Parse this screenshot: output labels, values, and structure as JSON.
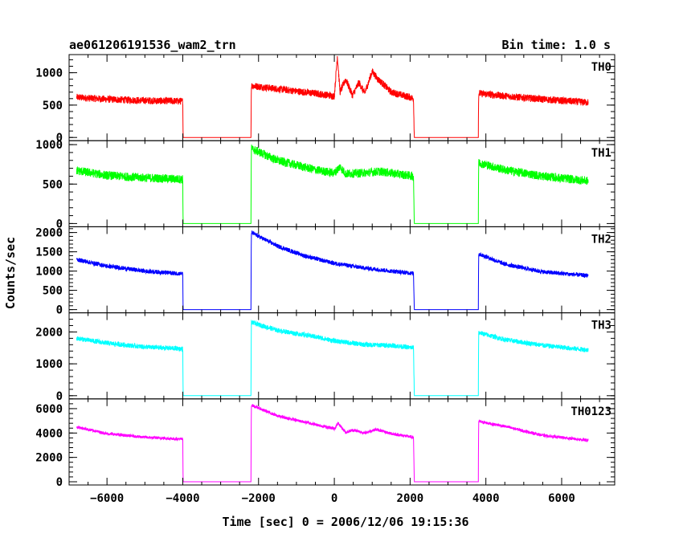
{
  "header": {
    "title": "ae061206191536_wam2_trn",
    "bin_time": "Bin time: 1.0 s"
  },
  "chart_data": {
    "type": "line",
    "xlabel": "Time [sec] 0 = 2006/12/06 19:15:36",
    "ylabel": "Counts/sec",
    "xlim": [
      -7000,
      7400
    ],
    "xticks": [
      -6000,
      -4000,
      -2000,
      0,
      2000,
      4000,
      6000
    ],
    "xtick_labels": [
      "−6000",
      "−4000",
      "−2000",
      "0",
      "2000",
      "4000",
      "6000"
    ],
    "series": [
      {
        "name": "TH0",
        "color": "#ff0000",
        "ylim": [
          0,
          1280
        ],
        "yticks": [
          0,
          500,
          1000
        ],
        "x": [
          -6800,
          -6000,
          -5000,
          -4000,
          -3990,
          -2200,
          -2190,
          -1500,
          -500,
          0,
          80,
          150,
          300,
          480,
          650,
          800,
          1000,
          1150,
          1300,
          1500,
          2000,
          2090,
          2110,
          3800,
          3810,
          4500,
          5500,
          6700
        ],
        "y": [
          620,
          590,
          570,
          560,
          0,
          0,
          800,
          750,
          680,
          640,
          1260,
          700,
          900,
          650,
          850,
          680,
          1020,
          900,
          820,
          700,
          620,
          600,
          0,
          0,
          680,
          640,
          590,
          540
        ],
        "noise": 55
      },
      {
        "name": "TH1",
        "color": "#00ff00",
        "ylim": [
          0,
          1050
        ],
        "yticks": [
          0,
          500,
          1000
        ],
        "x": [
          -6800,
          -6000,
          -5000,
          -4000,
          -3990,
          -2200,
          -2190,
          -1500,
          -500,
          0,
          150,
          300,
          700,
          1200,
          1800,
          2090,
          2110,
          3800,
          3810,
          4500,
          5500,
          6700
        ],
        "y": [
          670,
          610,
          580,
          560,
          0,
          0,
          950,
          800,
          680,
          640,
          720,
          630,
          640,
          660,
          620,
          600,
          0,
          0,
          770,
          680,
          600,
          540
        ],
        "noise": 55
      },
      {
        "name": "TH2",
        "color": "#0000ff",
        "ylim": [
          0,
          2150
        ],
        "yticks": [
          0,
          500,
          1000,
          1500,
          2000
        ],
        "x": [
          -6800,
          -6000,
          -5000,
          -4000,
          -3990,
          -2200,
          -2190,
          -1500,
          -800,
          0,
          800,
          1500,
          2090,
          2110,
          3800,
          3810,
          4500,
          5500,
          6700
        ],
        "y": [
          1300,
          1130,
          1000,
          930,
          0,
          0,
          2000,
          1650,
          1400,
          1200,
          1080,
          1000,
          940,
          0,
          0,
          1450,
          1180,
          980,
          880
        ],
        "noise": 55
      },
      {
        "name": "TH3",
        "color": "#00ffff",
        "ylim": [
          0,
          2600
        ],
        "yticks": [
          0,
          1000,
          2000
        ],
        "x": [
          -6800,
          -6000,
          -5000,
          -4000,
          -3990,
          -2200,
          -2190,
          -1500,
          -500,
          0,
          800,
          1500,
          2090,
          2110,
          3800,
          3810,
          4500,
          5500,
          6700
        ],
        "y": [
          1800,
          1650,
          1530,
          1470,
          0,
          0,
          2300,
          2050,
          1850,
          1720,
          1600,
          1580,
          1500,
          0,
          0,
          1980,
          1760,
          1580,
          1430
        ],
        "noise": 75
      },
      {
        "name": "TH0123",
        "color": "#ff00ff",
        "ylim": [
          0,
          6800
        ],
        "yticks": [
          0,
          2000,
          4000,
          6000
        ],
        "x": [
          -6800,
          -6000,
          -5000,
          -4000,
          -3990,
          -2200,
          -2190,
          -1500,
          -500,
          0,
          100,
          300,
          500,
          800,
          1100,
          1500,
          2090,
          2110,
          3800,
          3810,
          4500,
          5500,
          6700
        ],
        "y": [
          4500,
          3950,
          3650,
          3500,
          0,
          0,
          6300,
          5400,
          4700,
          4350,
          4800,
          4050,
          4250,
          4000,
          4300,
          3950,
          3650,
          0,
          0,
          4950,
          4550,
          3800,
          3400
        ],
        "noise": 120
      }
    ]
  }
}
